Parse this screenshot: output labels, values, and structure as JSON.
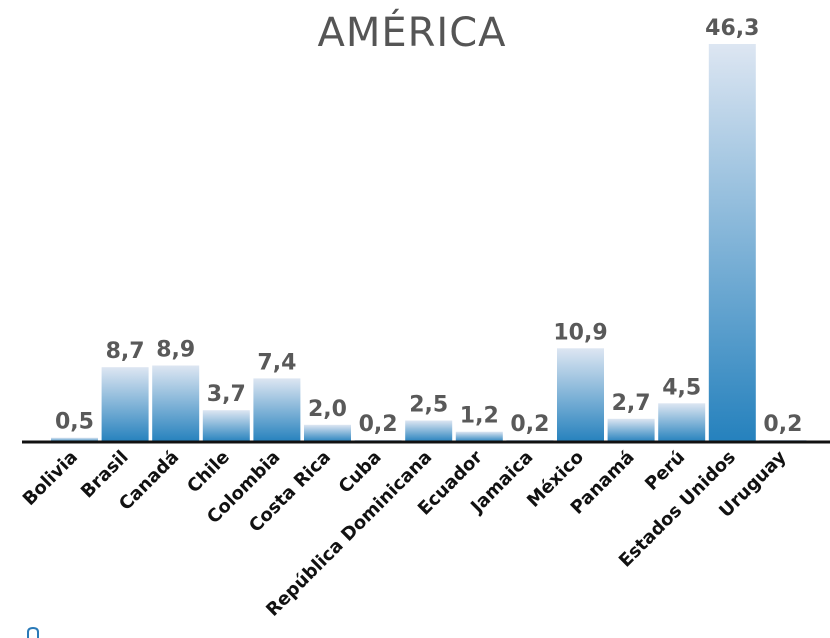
{
  "chart_data": {
    "type": "bar",
    "title": "AMÉRICA",
    "xlabel": "",
    "ylabel": "",
    "categories": [
      "Bolivia",
      "Brasil",
      "Canadá",
      "Chile",
      "Colombia",
      "Costa Rica",
      "Cuba",
      "República Dominicana",
      "Ecuador",
      "Jamaica",
      "México",
      "Panamá",
      "Perú",
      "Estados Unidos",
      "Uruguay"
    ],
    "values": [
      0.5,
      8.7,
      8.9,
      3.7,
      7.4,
      2.0,
      0.2,
      2.5,
      1.2,
      0.2,
      10.9,
      2.7,
      4.5,
      46.3,
      0.2
    ],
    "value_labels": [
      "0,5",
      "8,7",
      "8,9",
      "3,7",
      "7,4",
      "2,0",
      "0,2",
      "2,5",
      "1,2",
      "0,2",
      "10,9",
      "2,7",
      "4,5",
      "46,3",
      "0,2"
    ],
    "ylim": [
      0,
      46.3
    ],
    "grid": false,
    "legend": "none",
    "colors": {
      "bar_top": "#dde6f2",
      "bar_bottom": "#2581bd",
      "value_label": "#595959",
      "title": "#555555",
      "axis": "#111111"
    }
  }
}
